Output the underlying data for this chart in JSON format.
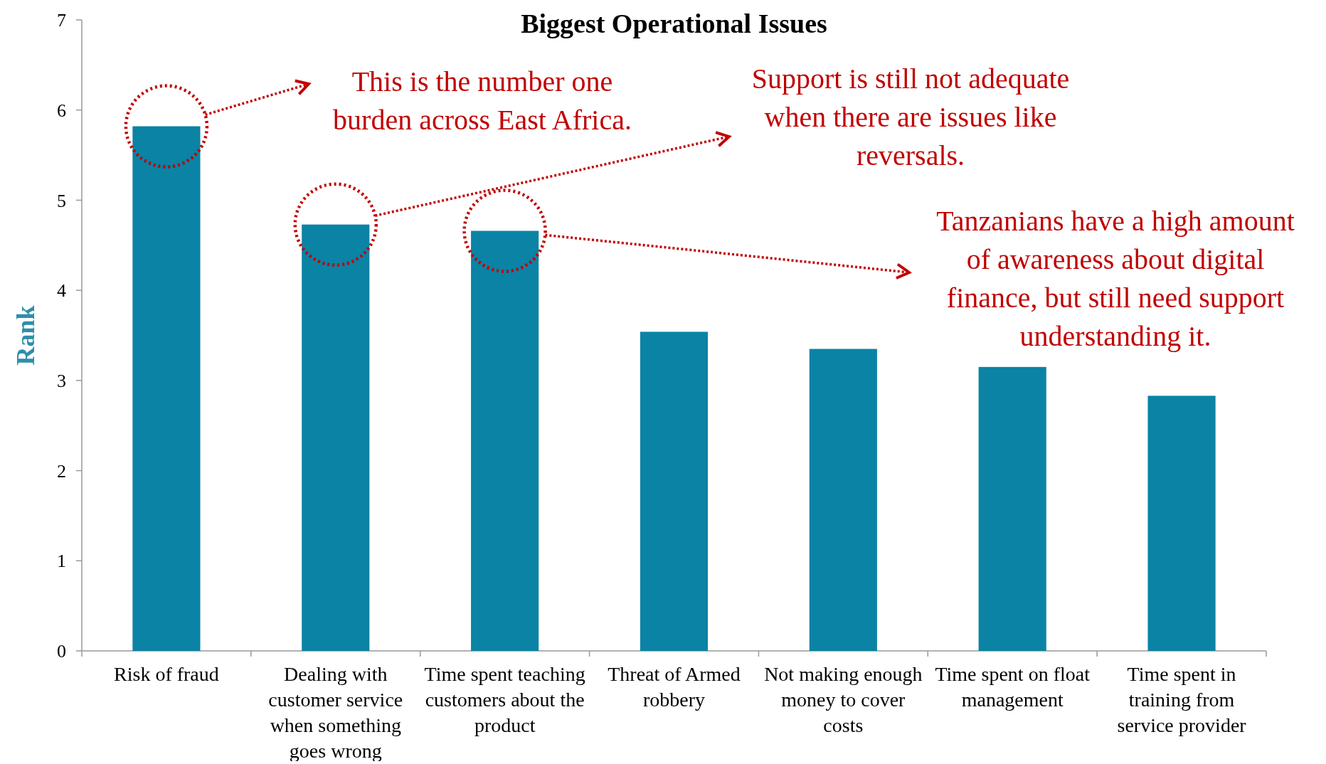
{
  "chart_data": {
    "type": "bar",
    "title": "Biggest Operational Issues",
    "ylabel": "Rank",
    "categories": [
      "Risk of fraud",
      "Dealing with customer service when something goes wrong",
      "Time spent teaching customers about the product",
      "Threat of Armed robbery",
      "Not making enough money to cover costs",
      "Time spent on float management",
      "Time spent in training from service provider"
    ],
    "values": [
      5.82,
      4.73,
      4.66,
      3.54,
      3.35,
      3.15,
      2.83
    ],
    "color": "#0a83a5",
    "ylim": [
      0,
      7
    ],
    "yticks": [
      0,
      1,
      2,
      3,
      4,
      5,
      6,
      7
    ],
    "grid": false,
    "annotations": [
      "This is the number one burden across East Africa.",
      "Support is still not adequate when there are issues like reversals.",
      "Tanzanians have a high amount of awareness about digital finance, but still need support understanding it."
    ]
  }
}
